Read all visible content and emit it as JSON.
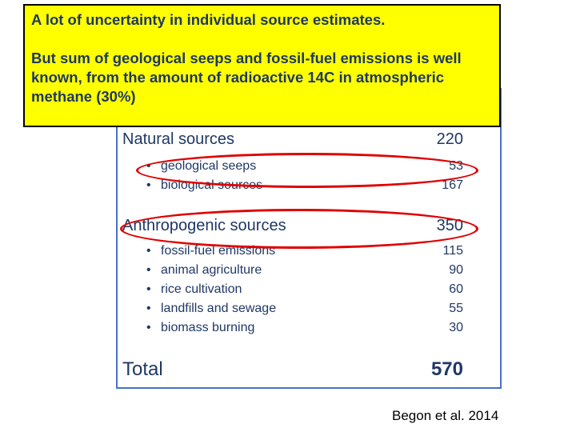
{
  "callout": {
    "line1": "A lot of uncertainty in individual source estimates.",
    "line2": "But sum of geological seeps and fossil-fuel emissions is well known, from the amount of radioactive 14C in atmospheric methane (30%)"
  },
  "table": {
    "natural": {
      "label": "Natural sources",
      "value": "220",
      "items": [
        {
          "label": "geological seeps",
          "value": "53"
        },
        {
          "label": "biological sources",
          "value": "167"
        }
      ]
    },
    "anthropogenic": {
      "label": "Anthropogenic sources",
      "value": "350",
      "items": [
        {
          "label": "fossil-fuel emissions",
          "value": "115"
        },
        {
          "label": "animal agriculture",
          "value": "90"
        },
        {
          "label": "rice cultivation",
          "value": "60"
        },
        {
          "label": "landfills and sewage",
          "value": "55"
        },
        {
          "label": "biomass burning",
          "value": "30"
        }
      ]
    },
    "total": {
      "label": "Total",
      "value": "570"
    },
    "bullet": "•"
  },
  "citation": "Begon et al. 2014",
  "colors": {
    "callout_bg": "#ffff00",
    "highlight": "#e00000",
    "border": "#4472c4",
    "text": "#1f3864"
  }
}
